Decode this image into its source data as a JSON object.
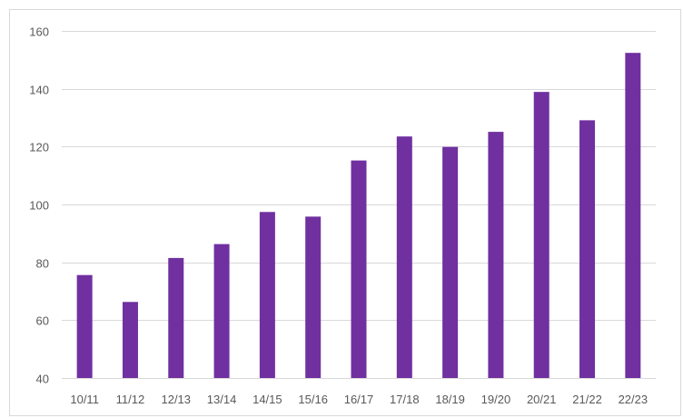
{
  "chart_data": {
    "type": "bar",
    "title": "",
    "xlabel": "",
    "ylabel": "",
    "categories": [
      "10/11",
      "11/12",
      "12/13",
      "13/14",
      "14/15",
      "15/16",
      "16/17",
      "17/18",
      "18/19",
      "19/20",
      "20/21",
      "21/22",
      "22/23"
    ],
    "values": [
      75.6,
      66.3,
      81.5,
      86.3,
      97.4,
      95.8,
      115.2,
      123.5,
      119.9,
      125.1,
      138.9,
      129.1,
      152.4
    ],
    "ylim": [
      40,
      160
    ],
    "yticks": [
      40,
      60,
      80,
      100,
      120,
      140,
      160
    ],
    "grid": true,
    "legend": "none",
    "bar_color": "#7030a0"
  }
}
